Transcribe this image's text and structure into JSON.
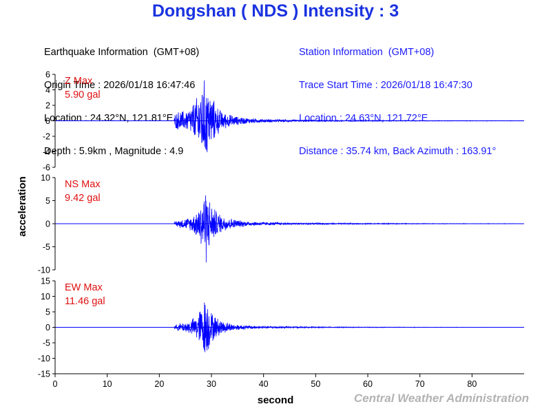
{
  "title": "Dongshan ( NDS ) Intensity : 3",
  "earthquake_info": {
    "heading": "Earthquake Information  (GMT+08)",
    "origin_time": "Origin Time : 2026/01/18 16:47:46",
    "location": "Location : 24.32°N, 121.81°E",
    "depth_magnitude": "Depth : 5.9km , Magnitude : 4.9"
  },
  "station_info": {
    "heading": "Station Information  (GMT+08)",
    "trace_start": "Trace Start Time : 2026/01/18 16:47:30",
    "location": "Location : 24.63°N, 121.72°E",
    "distance": "Distance : 35.74 km, Back Azimuth : 163.91°"
  },
  "credit": "Central Weather Administration",
  "colors": {
    "title": "#1a33e0",
    "trace": "#0000ff",
    "max_label": "#e01010",
    "station_text": "#1a1aff"
  },
  "chart_data": {
    "type": "line",
    "xlabel": "second",
    "ylabel": "acceleration",
    "xlim": [
      0,
      90
    ],
    "xticks": [
      0,
      10,
      20,
      30,
      40,
      50,
      60,
      70,
      80
    ],
    "grid": false,
    "panels": [
      {
        "name": "Z",
        "max_label": "Z Max",
        "max_value": "5.90 gal",
        "ylim": [
          -6,
          6
        ],
        "yticks": [
          -6,
          -4,
          -2,
          0,
          2,
          4,
          6
        ],
        "envelope": {
          "x": [
            0,
            22.8,
            23,
            24,
            25,
            26,
            27,
            28,
            28.5,
            29,
            29.5,
            30,
            31,
            32,
            33,
            34,
            35,
            37,
            40,
            45,
            50,
            60,
            70,
            80,
            90
          ],
          "amp": [
            0.02,
            0.02,
            1.0,
            1.5,
            1.3,
            2.0,
            3.0,
            4.6,
            5.9,
            5.3,
            4.5,
            3.5,
            2.2,
            1.3,
            1.0,
            0.8,
            0.6,
            0.4,
            0.25,
            0.15,
            0.1,
            0.07,
            0.05,
            0.04,
            0.03
          ]
        }
      },
      {
        "name": "NS",
        "max_label": "NS Max",
        "max_value": "9.42 gal",
        "ylim": [
          -10,
          10
        ],
        "yticks": [
          -10,
          -5,
          0,
          5,
          10
        ],
        "envelope": {
          "x": [
            0,
            22.8,
            23,
            24,
            25,
            26,
            27,
            28,
            28.5,
            29,
            29.5,
            30,
            31,
            32,
            33,
            34,
            35,
            37,
            40,
            45,
            50,
            60,
            70,
            80,
            90
          ],
          "amp": [
            0.02,
            0.02,
            0.6,
            1.0,
            1.2,
            1.6,
            2.8,
            5.5,
            7.0,
            9.4,
            6.2,
            4.5,
            3.0,
            2.0,
            1.6,
            1.2,
            0.9,
            0.6,
            0.4,
            0.25,
            0.18,
            0.12,
            0.08,
            0.05,
            0.04
          ]
        }
      },
      {
        "name": "EW",
        "max_label": "EW Max",
        "max_value": "11.46 gal",
        "ylim": [
          -15,
          15
        ],
        "yticks": [
          -15,
          -10,
          -5,
          0,
          5,
          10,
          15
        ],
        "envelope": {
          "x": [
            0,
            22.8,
            23,
            24,
            25,
            26,
            27,
            28,
            28.5,
            29,
            29.5,
            30,
            31,
            32,
            33,
            34,
            35,
            37,
            40,
            45,
            50,
            60,
            70,
            80,
            90
          ],
          "amp": [
            0.02,
            0.02,
            0.8,
            1.5,
            1.8,
            2.5,
            4.0,
            7.0,
            9.5,
            11.46,
            8.0,
            5.5,
            3.5,
            2.5,
            1.8,
            1.3,
            1.0,
            0.7,
            0.45,
            0.3,
            0.2,
            0.12,
            0.08,
            0.05,
            0.04
          ]
        }
      }
    ]
  }
}
